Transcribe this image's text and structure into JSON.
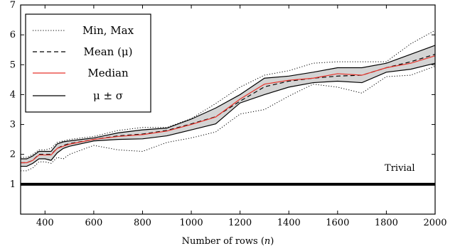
{
  "chart_data": {
    "type": "line",
    "xlabel": "Number of rows (n)",
    "ylabel": "",
    "xlim": [
      300,
      2000
    ],
    "ylim": [
      0,
      7
    ],
    "x_ticks": [
      400,
      600,
      800,
      1000,
      1200,
      1400,
      1600,
      1800,
      2000
    ],
    "y_ticks": [
      1,
      2,
      3,
      4,
      5,
      6,
      7
    ],
    "grid": false,
    "legend_position": "top-left",
    "annotations": [
      {
        "text": "Trivial",
        "x": 1855,
        "y": 1.45
      }
    ],
    "x": [
      300,
      325,
      350,
      375,
      400,
      425,
      450,
      475,
      500,
      600,
      700,
      800,
      900,
      1000,
      1100,
      1200,
      1300,
      1400,
      1500,
      1600,
      1700,
      1800,
      1900,
      2000
    ],
    "series": [
      {
        "name": "Min, Max",
        "style": "dotted",
        "color": "#000000",
        "values": [
          1.45,
          1.45,
          1.55,
          1.75,
          1.75,
          1.7,
          1.9,
          1.85,
          2.0,
          2.3,
          2.15,
          2.1,
          2.4,
          2.55,
          2.75,
          3.35,
          3.5,
          3.95,
          4.35,
          4.25,
          4.05,
          4.6,
          4.65,
          4.95
        ]
      },
      {
        "name": "",
        "style": "dotted",
        "color": "#000000",
        "values": [
          1.9,
          1.9,
          2.0,
          2.15,
          2.15,
          2.2,
          2.4,
          2.45,
          2.5,
          2.6,
          2.8,
          2.9,
          2.9,
          3.2,
          3.7,
          4.25,
          4.65,
          4.8,
          5.05,
          5.1,
          5.1,
          5.1,
          5.7,
          6.15
        ]
      },
      {
        "name": "Mean (μ)",
        "style": "dashed",
        "color": "#000000",
        "values": [
          1.72,
          1.72,
          1.8,
          2.0,
          2.0,
          2.0,
          2.2,
          2.3,
          2.36,
          2.5,
          2.62,
          2.68,
          2.8,
          3.02,
          3.26,
          3.78,
          4.26,
          4.45,
          4.55,
          4.62,
          4.65,
          4.9,
          5.1,
          5.35
        ]
      },
      {
        "name": "Median",
        "style": "solid",
        "color": "#e8332a",
        "values": [
          1.72,
          1.72,
          1.8,
          1.98,
          1.98,
          1.98,
          2.2,
          2.27,
          2.34,
          2.5,
          2.6,
          2.66,
          2.78,
          3.0,
          3.25,
          3.85,
          4.35,
          4.48,
          4.55,
          4.7,
          4.65,
          4.9,
          5.05,
          5.3
        ]
      },
      {
        "name": "μ ± σ",
        "style": "solid",
        "color": "#000000",
        "values": [
          1.6,
          1.6,
          1.7,
          1.85,
          1.85,
          1.8,
          2.05,
          2.2,
          2.27,
          2.45,
          2.5,
          2.52,
          2.62,
          2.82,
          3.02,
          3.72,
          4.0,
          4.25,
          4.4,
          4.45,
          4.4,
          4.75,
          4.85,
          5.05
        ]
      },
      {
        "name": "",
        "style": "solid",
        "color": "#000000",
        "values": [
          1.85,
          1.85,
          1.95,
          2.1,
          2.1,
          2.1,
          2.35,
          2.42,
          2.45,
          2.55,
          2.72,
          2.82,
          2.88,
          3.18,
          3.55,
          4.0,
          4.55,
          4.62,
          4.75,
          4.9,
          4.9,
          5.05,
          5.35,
          5.65
        ]
      },
      {
        "name": "Trivial",
        "style": "thick",
        "color": "#000000",
        "values": [
          1,
          1,
          1,
          1,
          1,
          1,
          1,
          1,
          1,
          1,
          1,
          1,
          1,
          1,
          1,
          1,
          1,
          1,
          1,
          1,
          1,
          1,
          1,
          1
        ]
      }
    ],
    "band": {
      "lower_series": 4,
      "upper_series": 5,
      "color": "#d4d4d4"
    },
    "legend": [
      {
        "label": "Min, Max",
        "style": "dotted",
        "color": "#000000"
      },
      {
        "label": "Mean (μ)",
        "style": "dashed",
        "color": "#000000"
      },
      {
        "label": "Median",
        "style": "solid",
        "color": "#e8332a"
      },
      {
        "label": "μ ± σ",
        "style": "solid",
        "color": "#000000"
      }
    ]
  }
}
